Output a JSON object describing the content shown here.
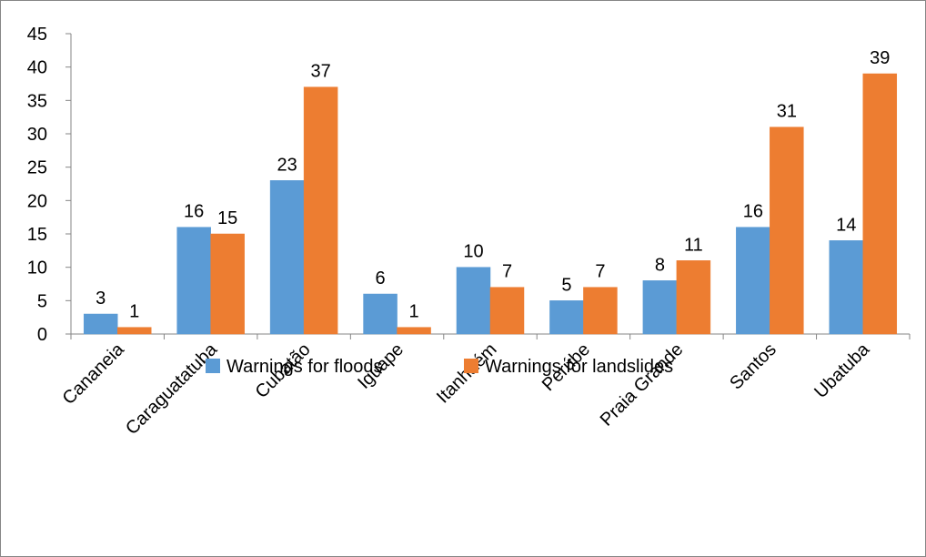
{
  "chart_data": {
    "type": "bar",
    "categories": [
      "Cananeia",
      "Caraguatatuba",
      "Cubatão",
      "Iguape",
      "Itanhaém",
      "Perúbe",
      "Praia Grande",
      "Santos",
      "Ubatuba"
    ],
    "series": [
      {
        "name": "Warnings for floods",
        "values": [
          3,
          16,
          23,
          6,
          10,
          5,
          8,
          16,
          14
        ],
        "color": "#5B9BD5"
      },
      {
        "name": "Warnings for landslides",
        "values": [
          1,
          15,
          37,
          1,
          7,
          7,
          11,
          31,
          39
        ],
        "color": "#ED7D31"
      }
    ],
    "ylim": [
      0,
      45
    ],
    "yticks": [
      "0",
      "5",
      "10",
      "15",
      "20",
      "25",
      "30",
      "35",
      "40",
      "45"
    ],
    "grid": false,
    "data_labels": true,
    "legend_position": "bottom",
    "title": "",
    "xlabel": "",
    "ylabel": ""
  }
}
